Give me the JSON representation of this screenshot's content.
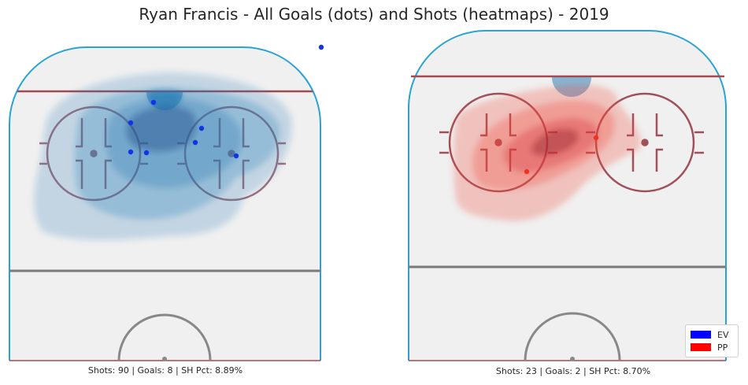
{
  "figure": {
    "title": "Ryan Francis - All Goals (dots) and Shots (heatmaps) - 2019"
  },
  "panels": [
    {
      "caption": "Shots: 90 | Goals: 8 | SH Pct: 8.89%",
      "heat_color": "#1f77b4",
      "goal_color": "#1034e8"
    },
    {
      "caption": "Shots: 23 | Goals: 2 | SH Pct: 8.70%",
      "heat_color": "#ef4a3a",
      "goal_color": "#f03020"
    }
  ],
  "legend": {
    "items": [
      {
        "label": "EV",
        "color": "#0000ff"
      },
      {
        "label": "PP",
        "color": "#ff0000"
      }
    ]
  },
  "chart_data": [
    {
      "type": "scatter",
      "title": "Shots: 90 | Goals: 8 | SH Pct: 8.89%",
      "series": [
        {
          "name": "EV",
          "kind": "goals",
          "color": "#1034e8",
          "points": [
            [
              -11,
              21
            ],
            [
              -20,
              25
            ],
            [
              -21,
              41
            ],
            [
              -12,
              41
            ],
            [
              22,
              40
            ],
            [
              19,
              45
            ],
            [
              32,
              35
            ],
            [
              51,
              11
            ]
          ]
        }
      ],
      "shots": 90,
      "goals": 8,
      "sh_pct": 8.89
    },
    {
      "type": "scatter",
      "title": "Shots: 23 | Goals: 2 | SH Pct: 8.70%",
      "series": [
        {
          "name": "PP",
          "kind": "goals",
          "color": "#f03020",
          "points": [
            [
              -30,
              34
            ],
            [
              15,
              45
            ]
          ]
        }
      ],
      "shots": 23,
      "goals": 2,
      "sh_pct": 8.7
    }
  ]
}
